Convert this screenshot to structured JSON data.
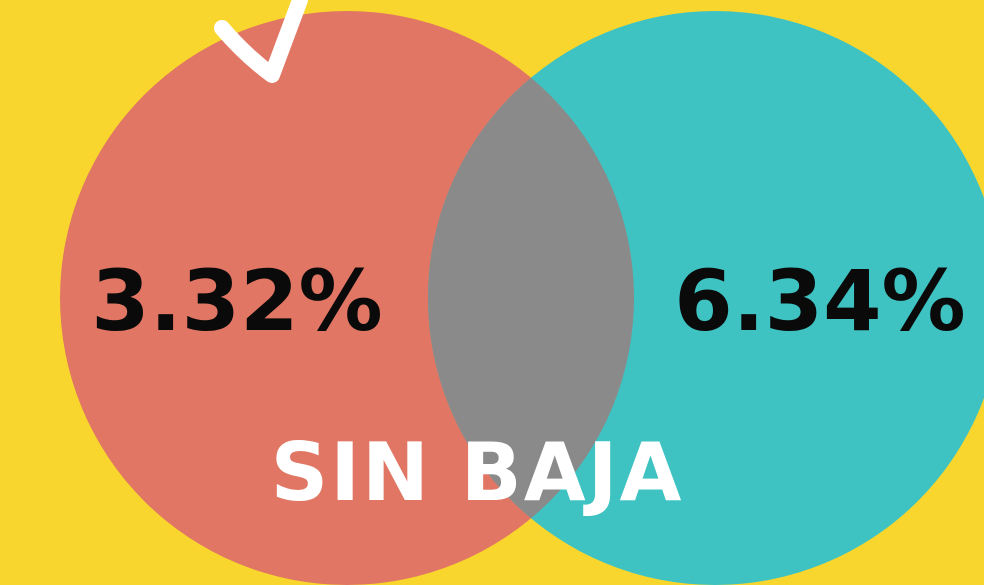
{
  "left_label": "3.32%",
  "right_label": "6.34%",
  "caption": "SIN BAJA"
}
